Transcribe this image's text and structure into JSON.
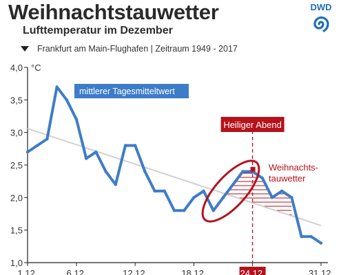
{
  "header": {
    "title": "Weihnachtstauwetter",
    "subtitle": "Lufttemperatur im Dezember",
    "location": "Frankfurt am Main-Flughafen | Zeitraum 1949 - 2017",
    "logo_text": "DWD"
  },
  "colors": {
    "line": "#3d7cc9",
    "trend": "#d0d0d0",
    "accent": "#b5121b",
    "text": "#2b2b2b"
  },
  "chart_data": {
    "type": "line",
    "title": "Weihnachtstauwetter",
    "subtitle": "Lufttemperatur im Dezember",
    "ylabel": "°C",
    "ylim": [
      1.0,
      4.0
    ],
    "yticks": [
      "4,0",
      "3,5",
      "3,0",
      "2,5",
      "2,0",
      "1,5",
      "1,0"
    ],
    "ytick_values": [
      4.0,
      3.5,
      3.0,
      2.5,
      2.0,
      1.5,
      1.0
    ],
    "xlim": [
      1,
      31
    ],
    "xtick_values": [
      1,
      6,
      12,
      18,
      24,
      31
    ],
    "xticks": [
      "1.12.",
      "6.12.",
      "12.12.",
      "18.12.",
      "24.12.",
      "31.12."
    ],
    "grid": false,
    "series": [
      {
        "name": "mittlerer Tagesmitteltwert",
        "x": [
          1,
          2,
          3,
          4,
          5,
          6,
          7,
          8,
          9,
          10,
          11,
          12,
          13,
          14,
          15,
          16,
          17,
          18,
          19,
          20,
          21,
          22,
          23,
          24,
          25,
          26,
          27,
          28,
          29,
          30,
          31
        ],
        "values": [
          2.7,
          2.8,
          2.9,
          3.7,
          3.5,
          3.2,
          2.6,
          2.7,
          2.4,
          2.2,
          2.8,
          2.8,
          2.4,
          2.1,
          2.1,
          1.8,
          1.8,
          2.0,
          2.1,
          1.8,
          2.0,
          2.2,
          2.4,
          2.4,
          2.3,
          2.0,
          2.1,
          2.0,
          1.4,
          1.4,
          1.3
        ]
      }
    ],
    "trend": {
      "x": [
        1,
        31
      ],
      "values": [
        3.06,
        1.57
      ]
    },
    "annotations": {
      "highlight_day_label": "Heiliger Abend",
      "highlight_day": 24,
      "region_label": "Weihnachts-\ntauwetter",
      "region_x": [
        21,
        28
      ]
    }
  }
}
